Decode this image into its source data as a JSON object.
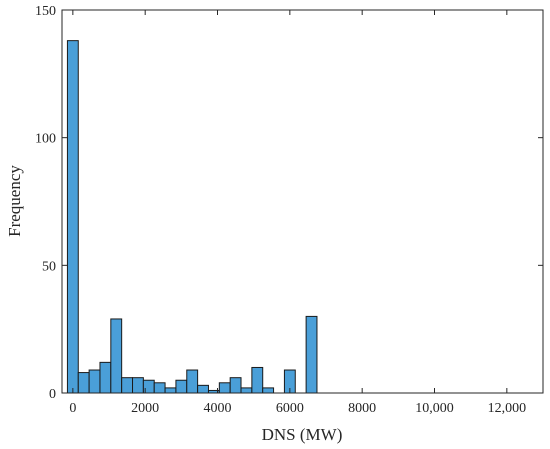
{
  "chart_data": {
    "type": "bar",
    "subtype": "histogram",
    "xlabel": "DNS (MW)",
    "ylabel": "Frequency",
    "xlim": [
      -300,
      13000
    ],
    "ylim": [
      0,
      150
    ],
    "xticks": [
      0,
      2000,
      4000,
      6000,
      8000,
      10000,
      12000
    ],
    "xtick_labels": [
      "0",
      "2000",
      "4000",
      "6000",
      "8000",
      "10,000",
      "12,000"
    ],
    "yticks": [
      0,
      50,
      100,
      150
    ],
    "ytick_labels": [
      "0",
      "50",
      "100",
      "150"
    ],
    "bin_width": 300,
    "bin_start": -150,
    "bins": [
      {
        "center": 0,
        "count": 138
      },
      {
        "center": 300,
        "count": 8
      },
      {
        "center": 600,
        "count": 9
      },
      {
        "center": 900,
        "count": 12
      },
      {
        "center": 1200,
        "count": 29
      },
      {
        "center": 1500,
        "count": 6
      },
      {
        "center": 1800,
        "count": 6
      },
      {
        "center": 2100,
        "count": 5
      },
      {
        "center": 2400,
        "count": 4
      },
      {
        "center": 2700,
        "count": 2
      },
      {
        "center": 3000,
        "count": 5
      },
      {
        "center": 3300,
        "count": 9
      },
      {
        "center": 3600,
        "count": 3
      },
      {
        "center": 3900,
        "count": 1
      },
      {
        "center": 4200,
        "count": 4
      },
      {
        "center": 4500,
        "count": 6
      },
      {
        "center": 4800,
        "count": 2
      },
      {
        "center": 5100,
        "count": 10
      },
      {
        "center": 5400,
        "count": 2
      },
      {
        "center": 5700,
        "count": 0
      },
      {
        "center": 6000,
        "count": 9
      },
      {
        "center": 6300,
        "count": 0
      },
      {
        "center": 6600,
        "count": 30
      }
    ],
    "grid": false,
    "bar_color": "#4a9fd8",
    "bar_edge_color": "#1a1a1a"
  }
}
